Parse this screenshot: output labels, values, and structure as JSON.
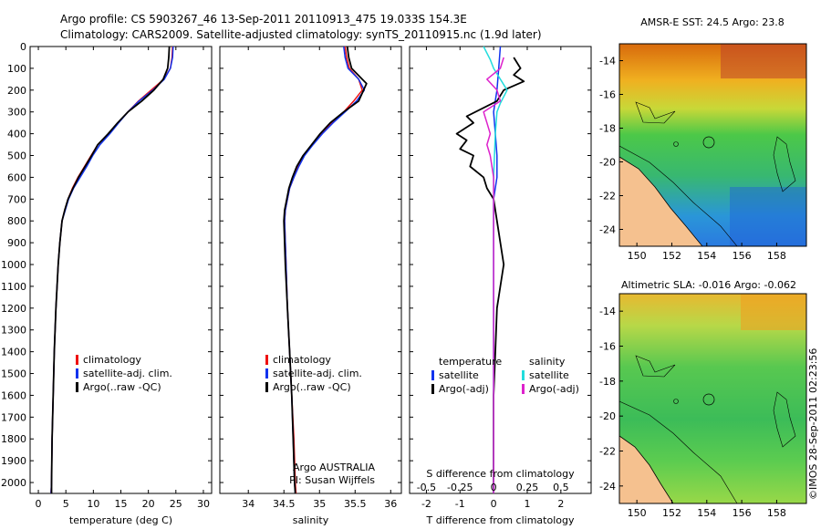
{
  "header": {
    "line1": "Argo profile: CS 5903267_46 13-Sep-2011 20110913_475 19.033S 154.3E",
    "line2": "Climatology: CARS2009. Satellite-adjusted climatology: synTS_20110915.nc (1.9d later)"
  },
  "colors": {
    "climatology": "#ee1111",
    "satellite": "#1133ee",
    "argo": "#000000",
    "sal_satellite": "#22dddd",
    "sal_argo": "#dd22cc",
    "land": "#f5c18f"
  },
  "depth_axis": {
    "ylim": [
      0,
      2050
    ],
    "ticks": [
      0,
      100,
      200,
      300,
      400,
      500,
      600,
      700,
      800,
      900,
      1000,
      1100,
      1200,
      1300,
      1400,
      1500,
      1600,
      1700,
      1800,
      1900,
      2000
    ]
  },
  "chart_data": [
    {
      "id": "temperature",
      "type": "line",
      "xlabel": "temperature (deg C)",
      "xlim": [
        -1.5,
        31.5
      ],
      "xticks": [
        0,
        5,
        10,
        15,
        20,
        25,
        30
      ],
      "legend": [
        "climatology",
        "satellite-adj. clim.",
        "Argo(..raw -QC)"
      ],
      "series": [
        {
          "name": "climatology",
          "color_key": "climatology",
          "points": [
            [
              24.4,
              0
            ],
            [
              24.3,
              50
            ],
            [
              24.0,
              100
            ],
            [
              22.8,
              150
            ],
            [
              20.5,
              200
            ],
            [
              18.2,
              250
            ],
            [
              16.3,
              300
            ],
            [
              14.5,
              350
            ],
            [
              12.8,
              400
            ],
            [
              10.8,
              450
            ],
            [
              9.6,
              500
            ],
            [
              8.4,
              550
            ],
            [
              7.2,
              600
            ],
            [
              6.2,
              650
            ],
            [
              5.4,
              700
            ],
            [
              4.8,
              750
            ],
            [
              4.3,
              800
            ],
            [
              3.9,
              900
            ],
            [
              3.6,
              1000
            ],
            [
              3.2,
              1200
            ],
            [
              2.9,
              1400
            ],
            [
              2.7,
              1600
            ],
            [
              2.5,
              1800
            ],
            [
              2.4,
              2000
            ],
            [
              2.3,
              2050
            ]
          ]
        },
        {
          "name": "satellite-adj. clim.",
          "color_key": "satellite",
          "points": [
            [
              24.5,
              0
            ],
            [
              24.4,
              50
            ],
            [
              24.0,
              100
            ],
            [
              22.9,
              150
            ],
            [
              20.8,
              200
            ],
            [
              18.3,
              250
            ],
            [
              16.3,
              300
            ],
            [
              14.6,
              350
            ],
            [
              13.0,
              400
            ],
            [
              11.2,
              450
            ],
            [
              9.9,
              500
            ],
            [
              8.8,
              550
            ],
            [
              7.6,
              600
            ],
            [
              6.4,
              650
            ],
            [
              5.5,
              700
            ],
            [
              4.9,
              750
            ],
            [
              4.3,
              800
            ],
            [
              3.9,
              900
            ],
            [
              3.6,
              1000
            ],
            [
              3.2,
              1200
            ],
            [
              2.9,
              1400
            ],
            [
              2.7,
              1600
            ],
            [
              2.5,
              1800
            ],
            [
              2.4,
              2000
            ],
            [
              2.3,
              2050
            ]
          ]
        },
        {
          "name": "Argo(..raw -QC)",
          "color_key": "argo",
          "points": [
            [
              23.8,
              0
            ],
            [
              23.7,
              50
            ],
            [
              23.5,
              100
            ],
            [
              22.7,
              150
            ],
            [
              21.0,
              200
            ],
            [
              18.8,
              250
            ],
            [
              16.3,
              300
            ],
            [
              14.4,
              350
            ],
            [
              12.7,
              400
            ],
            [
              10.8,
              450
            ],
            [
              9.7,
              500
            ],
            [
              8.5,
              550
            ],
            [
              7.3,
              600
            ],
            [
              6.3,
              650
            ],
            [
              5.4,
              700
            ],
            [
              4.8,
              750
            ],
            [
              4.3,
              800
            ],
            [
              3.9,
              900
            ],
            [
              3.6,
              1000
            ],
            [
              3.2,
              1200
            ],
            [
              2.9,
              1400
            ],
            [
              2.7,
              1600
            ],
            [
              2.5,
              1800
            ],
            [
              2.4,
              2000
            ],
            [
              2.4,
              2050
            ]
          ]
        }
      ]
    },
    {
      "id": "salinity",
      "type": "line",
      "xlabel": "salinity",
      "xlim": [
        33.6,
        36.15
      ],
      "xticks": [
        34,
        34.5,
        35,
        35.5,
        36
      ],
      "legend": [
        "climatology",
        "satellite-adj. clim.",
        "Argo(..raw -QC)"
      ],
      "annotation": [
        "Argo AUSTRALIA",
        "PI: Susan Wijffels"
      ],
      "series": [
        {
          "name": "climatology",
          "color_key": "climatology",
          "points": [
            [
              35.36,
              0
            ],
            [
              35.38,
              50
            ],
            [
              35.42,
              100
            ],
            [
              35.55,
              150
            ],
            [
              35.6,
              200
            ],
            [
              35.48,
              250
            ],
            [
              35.34,
              300
            ],
            [
              35.17,
              350
            ],
            [
              35.02,
              400
            ],
            [
              34.9,
              450
            ],
            [
              34.78,
              500
            ],
            [
              34.7,
              550
            ],
            [
              34.64,
              600
            ],
            [
              34.58,
              650
            ],
            [
              34.55,
              700
            ],
            [
              34.52,
              750
            ],
            [
              34.51,
              800
            ],
            [
              34.52,
              900
            ],
            [
              34.53,
              1000
            ],
            [
              34.55,
              1200
            ],
            [
              34.58,
              1400
            ],
            [
              34.61,
              1600
            ],
            [
              34.64,
              1800
            ],
            [
              34.66,
              2000
            ],
            [
              34.67,
              2050
            ]
          ]
        },
        {
          "name": "satellite-adj. clim.",
          "color_key": "satellite",
          "points": [
            [
              35.34,
              0
            ],
            [
              35.36,
              50
            ],
            [
              35.4,
              100
            ],
            [
              35.55,
              150
            ],
            [
              35.63,
              200
            ],
            [
              35.52,
              250
            ],
            [
              35.36,
              300
            ],
            [
              35.19,
              350
            ],
            [
              35.04,
              400
            ],
            [
              34.91,
              450
            ],
            [
              34.79,
              500
            ],
            [
              34.71,
              550
            ],
            [
              34.64,
              600
            ],
            [
              34.58,
              650
            ],
            [
              34.55,
              700
            ],
            [
              34.52,
              750
            ],
            [
              34.51,
              800
            ],
            [
              34.52,
              900
            ],
            [
              34.53,
              1000
            ],
            [
              34.55,
              1200
            ],
            [
              34.58,
              1400
            ],
            [
              34.61,
              1600
            ],
            [
              34.63,
              1800
            ],
            [
              34.65,
              2000
            ],
            [
              34.66,
              2050
            ]
          ]
        },
        {
          "name": "Argo(..raw -QC)",
          "color_key": "argo",
          "points": [
            [
              35.39,
              0
            ],
            [
              35.41,
              50
            ],
            [
              35.45,
              100
            ],
            [
              35.6,
              150
            ],
            [
              35.66,
              170
            ],
            [
              35.55,
              250
            ],
            [
              35.34,
              300
            ],
            [
              35.15,
              350
            ],
            [
              35.01,
              400
            ],
            [
              34.89,
              450
            ],
            [
              34.77,
              500
            ],
            [
              34.68,
              550
            ],
            [
              34.62,
              600
            ],
            [
              34.57,
              650
            ],
            [
              34.54,
              700
            ],
            [
              34.51,
              750
            ],
            [
              34.5,
              800
            ],
            [
              34.51,
              900
            ],
            [
              34.52,
              1000
            ],
            [
              34.55,
              1200
            ],
            [
              34.58,
              1400
            ],
            [
              34.61,
              1600
            ],
            [
              34.63,
              1800
            ],
            [
              34.65,
              2000
            ],
            [
              34.66,
              2050
            ]
          ]
        }
      ]
    },
    {
      "id": "difference",
      "type": "line",
      "xlabel": "T difference from climatology",
      "xlabel_top": "S difference from climatology",
      "xlim": [
        -2.5,
        2.9
      ],
      "xticks": [
        -2,
        -1,
        0,
        1,
        2
      ],
      "top_ticks": [
        {
          "label": "-0.5",
          "t": -2
        },
        {
          "label": "-0.25",
          "t": -1
        },
        {
          "label": "0",
          "t": 0
        },
        {
          "label": "0.25",
          "t": 1
        },
        {
          "label": "0.5",
          "t": 2
        }
      ],
      "legend_groups": [
        {
          "title": "temperature",
          "items": [
            "satellite",
            "Argo(-adj)"
          ]
        },
        {
          "title": "salinity",
          "items": [
            "satellite",
            "Argo(-adj)"
          ]
        }
      ],
      "series": [
        {
          "name": "T satellite",
          "color_key": "satellite",
          "points": [
            [
              0.2,
              0
            ],
            [
              0.15,
              100
            ],
            [
              0.1,
              200
            ],
            [
              0.0,
              300
            ],
            [
              0.05,
              400
            ],
            [
              0.1,
              500
            ],
            [
              0.1,
              600
            ],
            [
              0.0,
              700
            ],
            [
              0.0,
              800
            ],
            [
              0.0,
              1000
            ],
            [
              0.0,
              2050
            ]
          ]
        },
        {
          "name": "T Argo(-adj)",
          "color_key": "argo",
          "points": [
            [
              0.6,
              50
            ],
            [
              0.8,
              100
            ],
            [
              0.6,
              130
            ],
            [
              0.9,
              160
            ],
            [
              0.3,
              200
            ],
            [
              0.1,
              250
            ],
            [
              -0.8,
              320
            ],
            [
              -0.6,
              350
            ],
            [
              -1.1,
              400
            ],
            [
              -0.8,
              430
            ],
            [
              -1.0,
              470
            ],
            [
              -0.6,
              500
            ],
            [
              -0.7,
              550
            ],
            [
              -0.3,
              600
            ],
            [
              -0.2,
              650
            ],
            [
              0.0,
              700
            ],
            [
              0.1,
              800
            ],
            [
              0.2,
              900
            ],
            [
              0.3,
              1000
            ],
            [
              0.2,
              1100
            ],
            [
              0.1,
              1200
            ],
            [
              0.05,
              1400
            ],
            [
              0.0,
              1600
            ],
            [
              0.0,
              2050
            ]
          ]
        },
        {
          "name": "S satellite",
          "color_key": "sal_satellite",
          "points": [
            [
              -0.3,
              0
            ],
            [
              -0.1,
              60
            ],
            [
              0.0,
              100
            ],
            [
              0.4,
              200
            ],
            [
              0.2,
              260
            ],
            [
              0.1,
              300
            ],
            [
              0.05,
              400
            ],
            [
              0.0,
              600
            ],
            [
              0.0,
              2050
            ]
          ]
        },
        {
          "name": "S Argo(-adj)",
          "color_key": "sal_argo",
          "points": [
            [
              0.3,
              50
            ],
            [
              0.2,
              100
            ],
            [
              -0.2,
              150
            ],
            [
              0.1,
              200
            ],
            [
              0.2,
              250
            ],
            [
              -0.3,
              300
            ],
            [
              -0.2,
              350
            ],
            [
              -0.1,
              400
            ],
            [
              -0.2,
              450
            ],
            [
              -0.1,
              500
            ],
            [
              0.0,
              600
            ],
            [
              0.0,
              2050
            ]
          ]
        }
      ]
    },
    {
      "id": "sst_map",
      "type": "heatmap",
      "title": "AMSR-E SST: 24.5 Argo: 23.8",
      "xticks": [
        150,
        152,
        154,
        156,
        158
      ],
      "yticks": [
        -14,
        -16,
        -18,
        -20,
        -22,
        -24
      ],
      "xlim": [
        149,
        159.7
      ],
      "ylim": [
        -25,
        -13
      ]
    },
    {
      "id": "sla_map",
      "type": "heatmap",
      "title": "Altimetric SLA: -0.016 Argo: -0.062",
      "xticks": [
        150,
        152,
        154,
        156,
        158
      ],
      "yticks": [
        -14,
        -16,
        -18,
        -20,
        -22,
        -24
      ],
      "xlim": [
        149,
        159.7
      ],
      "ylim": [
        -25,
        -13
      ]
    }
  ],
  "credit": "©IMOS 28-Sep-2011 02:23:56"
}
